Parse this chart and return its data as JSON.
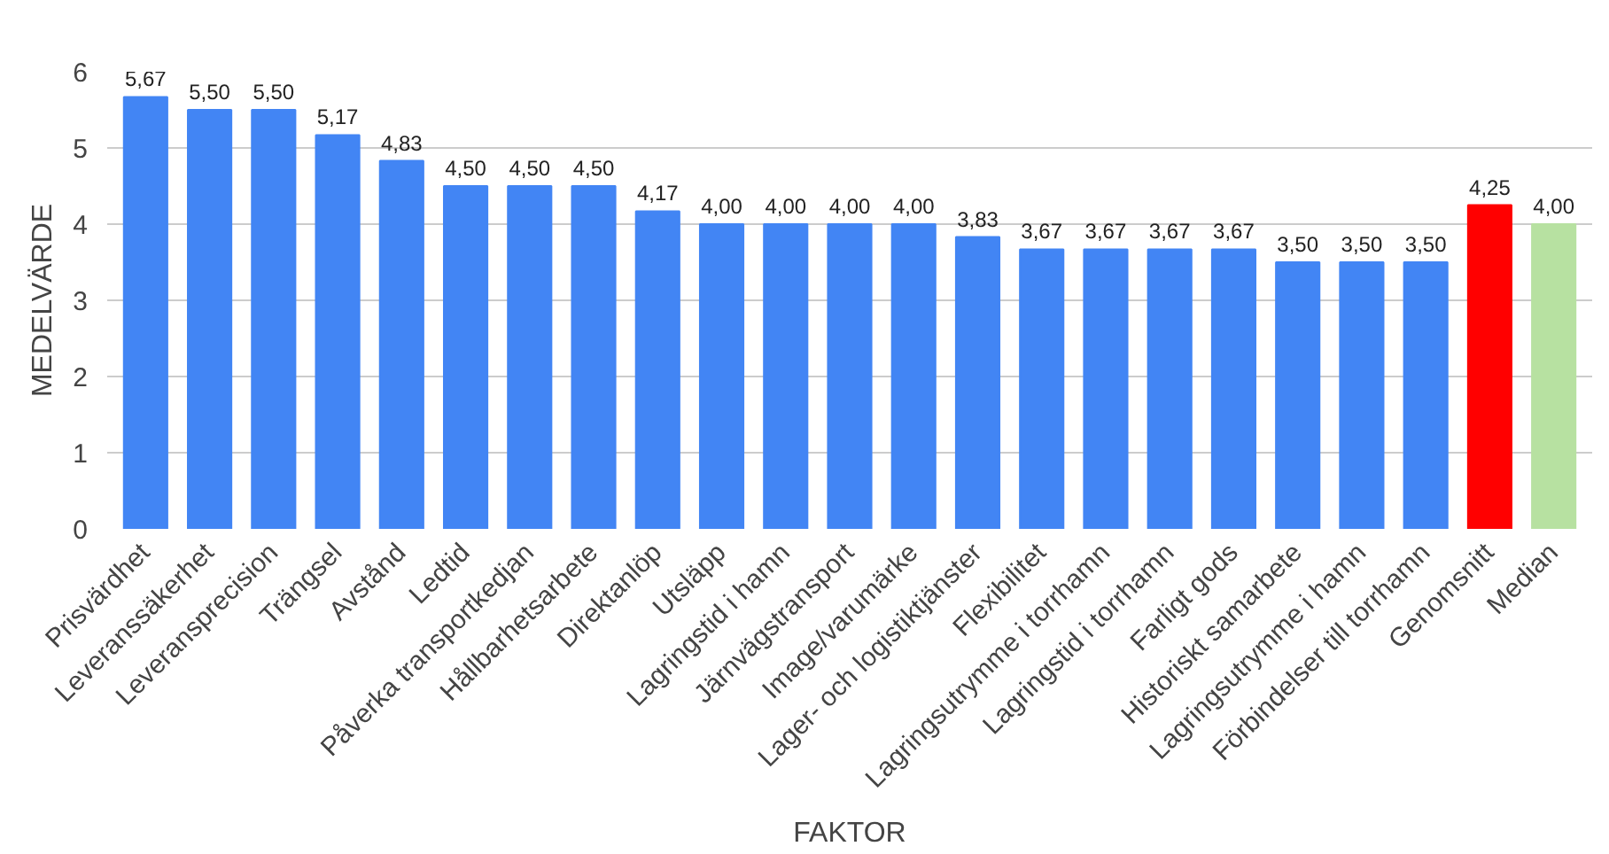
{
  "chart_data": {
    "type": "bar",
    "xlabel": "FAKTOR",
    "ylabel": "MEDELVÄRDE",
    "categories": [
      "Prisvärdhet",
      "Leveranssäkerhet",
      "Leveransprecision",
      "Trängsel",
      "Avstånd",
      "Ledtid",
      "Påverka transportkedjan",
      "Hållbarhetsarbete",
      "Direktanlöp",
      "Utsläpp",
      "Lagringstid i hamn",
      "Järnvägstransport",
      "Image/varumärke",
      "Lager- och logistiktjänster",
      "Flexibilitet",
      "Lagringsutrymme i torrhamn",
      "Lagringstid i torrhamn",
      "Farligt gods",
      "Historiskt samarbete",
      "Lagringsutrymme i hamn",
      "Förbindelser till torrhamn",
      "Genomsnitt",
      "Median"
    ],
    "values": [
      5.67,
      5.5,
      5.5,
      5.17,
      4.83,
      4.5,
      4.5,
      4.5,
      4.17,
      4.0,
      4.0,
      4.0,
      4.0,
      3.83,
      3.67,
      3.67,
      3.67,
      3.67,
      3.5,
      3.5,
      3.5,
      4.25,
      4.0
    ],
    "value_labels": [
      "5,67",
      "5,50",
      "5,50",
      "5,17",
      "4,83",
      "4,50",
      "4,50",
      "4,50",
      "4,17",
      "4,00",
      "4,00",
      "4,00",
      "4,00",
      "3,83",
      "3,67",
      "3,67",
      "3,67",
      "3,67",
      "3,50",
      "3,50",
      "3,50",
      "4,25",
      "4,00"
    ],
    "colors": [
      "#4285f4",
      "#4285f4",
      "#4285f4",
      "#4285f4",
      "#4285f4",
      "#4285f4",
      "#4285f4",
      "#4285f4",
      "#4285f4",
      "#4285f4",
      "#4285f4",
      "#4285f4",
      "#4285f4",
      "#4285f4",
      "#4285f4",
      "#4285f4",
      "#4285f4",
      "#4285f4",
      "#4285f4",
      "#4285f4",
      "#4285f4",
      "#ff0000",
      "#b7e1a1"
    ],
    "ylim": [
      0,
      6
    ],
    "yticks": [
      0,
      1,
      2,
      3,
      4,
      5,
      6
    ],
    "grid": "y"
  }
}
